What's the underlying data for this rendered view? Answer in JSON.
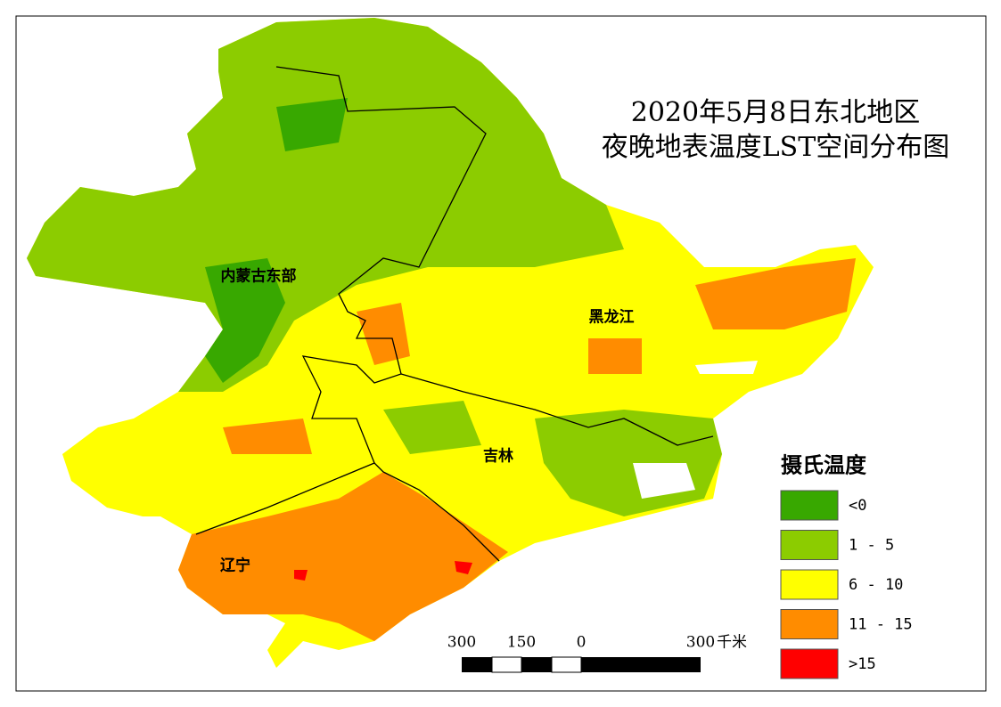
{
  "title": {
    "line1": "2020年5月8日东北地区",
    "line2": "夜晚地表温度LST空间分布图"
  },
  "regions": [
    {
      "label": "内蒙古东部"
    },
    {
      "label": "黑龙江"
    },
    {
      "label": "吉林"
    },
    {
      "label": "辽宁"
    }
  ],
  "legend": {
    "title": "摄氏温度",
    "items": [
      {
        "label": "<0",
        "color": "#38a800"
      },
      {
        "label": "1 - 5",
        "color": "#8ccc00"
      },
      {
        "label": "6 - 10",
        "color": "#ffff00"
      },
      {
        "label": "11 - 15",
        "color": "#ff8c00"
      },
      {
        "label": ">15",
        "color": "#ff0000"
      }
    ]
  },
  "scale_bar": {
    "labels": [
      "300",
      "150",
      "0",
      "300"
    ],
    "unit": "千米"
  }
}
